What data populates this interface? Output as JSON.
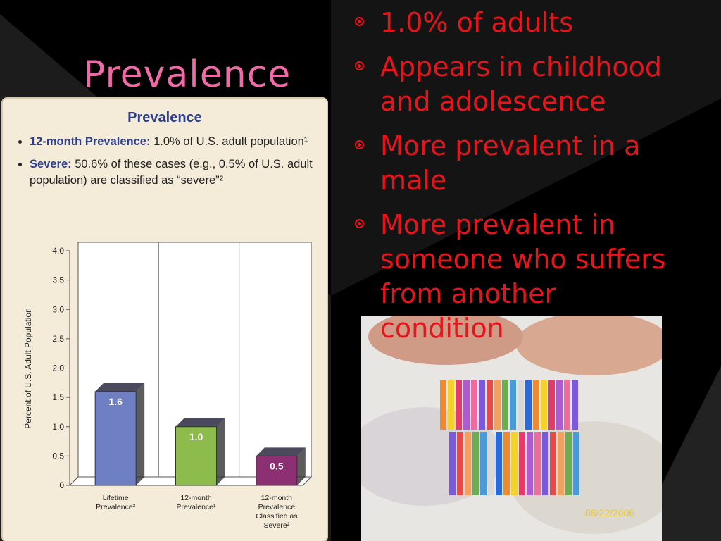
{
  "slide": {
    "title": "Prevalence",
    "bullets": [
      "1.0% of adults",
      "Appears in childhood and adolescence",
      "More prevalent in a male",
      "More prevalent in someone who suffers from another condition"
    ]
  },
  "figure": {
    "title": "Prevalence",
    "notes": [
      {
        "label": "12-month Prevalence:",
        "text": "1.0% of U.S. adult population¹"
      },
      {
        "label": "Severe:",
        "text": "50.6% of these cases (e.g., 0.5% of U.S. adult population) are classified as “severe”²"
      }
    ]
  },
  "chart_data": {
    "type": "bar",
    "categories": [
      "Lifetime Prevalence³",
      "12-month Prevalence¹",
      "12-month Prevalence Classified as Severe²"
    ],
    "values": [
      1.6,
      1.0,
      0.5
    ],
    "value_labels": [
      "1.6",
      "1.0",
      "0.5"
    ],
    "colors": [
      "#6f7fc4",
      "#8dbb4c",
      "#8c2f73"
    ],
    "ylabel": "Percent of U.S. Adult Population",
    "ylim": [
      0,
      4
    ],
    "yticks": [
      0,
      0.5,
      {
        "value": 1,
        "label": "1.0"
      },
      1.5,
      {
        "value": 2,
        "label": "2.0"
      },
      2.5,
      {
        "value": 3,
        "label": "3.0"
      },
      3.5,
      {
        "value": 4,
        "label": "4.0"
      }
    ]
  },
  "photo": {
    "timestamp": "08/22/2006"
  }
}
